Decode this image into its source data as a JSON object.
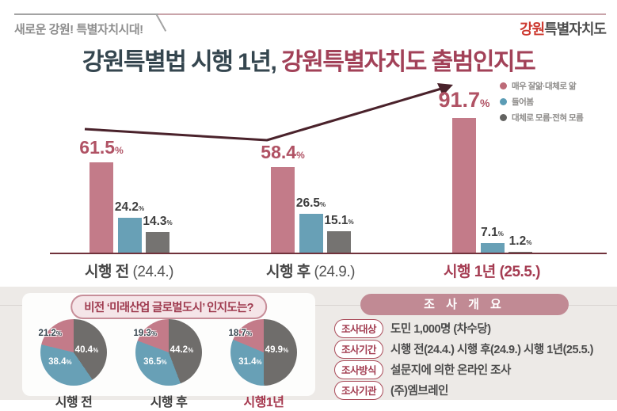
{
  "header": {
    "slogan": "새로운 강원! 특별자치시대!",
    "logo_accent": "강원",
    "logo_rest": "특별자치도"
  },
  "title": {
    "part1": "강원특별법 시행 1년, ",
    "part2": "강원특별자치도 출범인지도"
  },
  "legend": {
    "items": [
      {
        "label": "매우 잘앎·대체로 앎",
        "color": "#bd6b78"
      },
      {
        "label": "들어봄",
        "color": "#5b9cb5"
      },
      {
        "label": "대체로 모름·전혀 모름",
        "color": "#636361"
      }
    ]
  },
  "chart_data": [
    {
      "type": "bar",
      "title": "강원특별자치도 출범인지도",
      "unit": "%",
      "ylim": [
        0,
        100
      ],
      "categories": [
        {
          "main": "시행 전",
          "sub": "(24.4.)",
          "highlight": false
        },
        {
          "main": "시행 후",
          "sub": "(24.9.)",
          "highlight": false
        },
        {
          "main": "시행 1년",
          "sub": "(25.5.)",
          "highlight": true
        }
      ],
      "series": [
        {
          "name": "매우 잘앎·대체로 앎",
          "color": "#c37b89",
          "values": [
            61.5,
            58.4,
            91.7
          ]
        },
        {
          "name": "들어봄",
          "color": "#68a0b6",
          "values": [
            24.2,
            26.5,
            7.1
          ]
        },
        {
          "name": "대체로 모름·전혀 모름",
          "color": "#757371",
          "values": [
            14.3,
            15.1,
            1.2
          ]
        }
      ],
      "annotation": "upward-trend-arrow"
    },
    {
      "type": "pie",
      "title": "비전 ‘미래산업 글로벌도시’ 인지도는?",
      "unit": "%",
      "slice_names": [
        "대체로 모름·전혀 모름",
        "들어봄",
        "매우 잘앎·대체로 앎"
      ],
      "colors": [
        "#6f6d6b",
        "#68a0b6",
        "#c37b89"
      ],
      "pies": [
        {
          "label": "시행 전",
          "values": [
            40.4,
            38.4,
            21.2
          ],
          "highlight": false
        },
        {
          "label": "시행 후",
          "values": [
            44.2,
            36.5,
            19.3
          ],
          "highlight": false
        },
        {
          "label": "시행1년",
          "values": [
            49.9,
            31.4,
            18.7
          ],
          "highlight": true
        }
      ]
    }
  ],
  "vision": {
    "title": "비전 ‘미래산업 글로벌도시’ 인지도는?"
  },
  "survey": {
    "title": "조 사 개 요",
    "rows": [
      {
        "label": "조사대상",
        "value": "도민 1,000명 (차수당)"
      },
      {
        "label": "조사기간",
        "value": "시행 전(24.4.) 시행 후(24.9.) 시행 1년(25.5.)"
      },
      {
        "label": "조사방식",
        "value": "설문지에 의한 온라인 조사"
      },
      {
        "label": "조사기관",
        "value": "(주)엠브레인"
      }
    ]
  }
}
